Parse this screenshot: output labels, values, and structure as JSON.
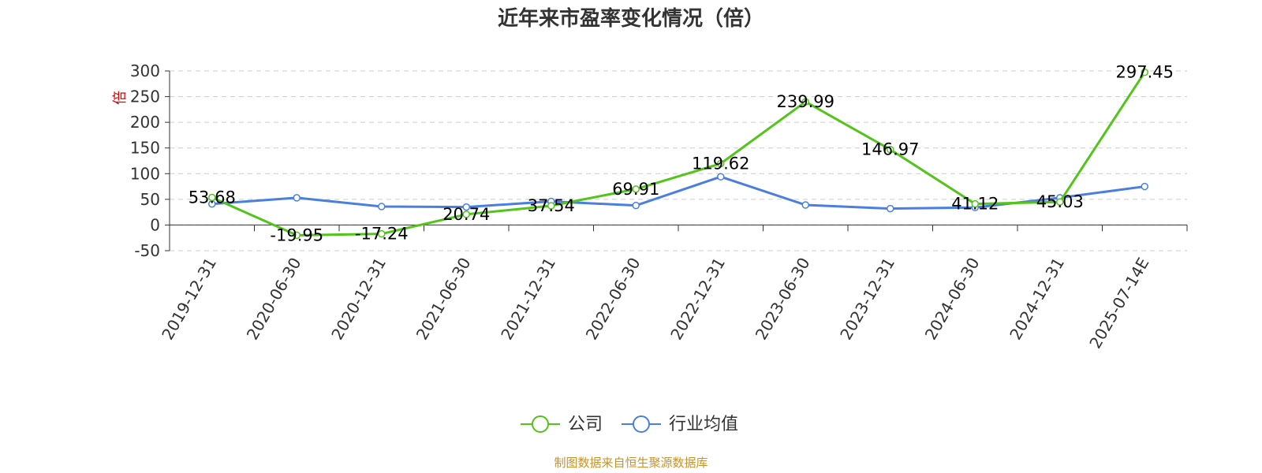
{
  "chart_data": {
    "type": "line",
    "title": "近年来市盈率变化情况（倍）",
    "ylabel": "倍",
    "xlabel": "",
    "categories": [
      "2019-12-31",
      "2020-06-30",
      "2020-12-31",
      "2021-06-30",
      "2021-12-31",
      "2022-06-30",
      "2022-12-31",
      "2023-06-30",
      "2023-12-31",
      "2024-06-30",
      "2024-12-31",
      "2025-07-14E"
    ],
    "ylim": [
      -50,
      300
    ],
    "yticks": [
      "-50",
      "0",
      "50",
      "100",
      "150",
      "200",
      "250",
      "300"
    ],
    "grid": true,
    "legend_position": "bottom-center",
    "series": [
      {
        "name": "公司",
        "color": "#52c41a",
        "values": [
          53.68,
          -19.95,
          -17.24,
          20.74,
          37.54,
          69.91,
          119.62,
          239.99,
          146.97,
          41.12,
          45.03,
          297.45
        ],
        "labels": [
          "53.68",
          "-19.95",
          "-17.24",
          "20.74",
          "37.54",
          "69.91",
          "119.62",
          "239.99",
          "146.97",
          "41.12",
          "45.03",
          "297.45"
        ]
      },
      {
        "name": "行业均值",
        "color": "#4a7fe0",
        "values": [
          41,
          53,
          36,
          35,
          46,
          38,
          94,
          39,
          32,
          34,
          53,
          75
        ]
      }
    ],
    "source": "制图数据来自恒生聚源数据库"
  }
}
